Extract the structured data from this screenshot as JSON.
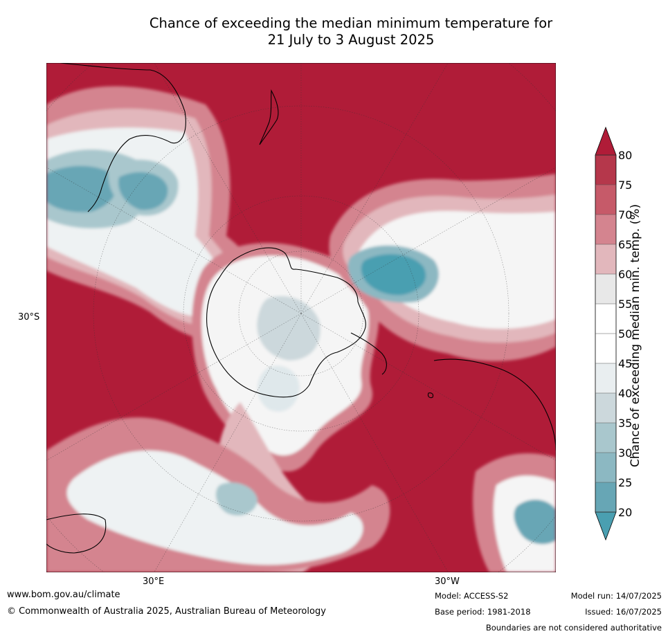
{
  "title_line1": "Chance of exceeding the median minimum temperature for",
  "title_line2": "21 July to 3 August 2025",
  "map": {
    "projection": "south-polar stereographic",
    "background_color": "#b01c38",
    "tick_labels": {
      "lat_left": "30°S",
      "lon_bottom_left": "30°E",
      "lon_bottom_right": "30°W"
    }
  },
  "colorbar": {
    "label": "Chance of exceeding median min. temp. (%)",
    "ticks": [
      "80",
      "75",
      "70",
      "65",
      "60",
      "55",
      "50",
      "45",
      "40",
      "35",
      "30",
      "25",
      "20"
    ],
    "bands": [
      {
        "range": "75-80",
        "color": "#b5374b"
      },
      {
        "range": "70-75",
        "color": "#c65a69"
      },
      {
        "range": "65-70",
        "color": "#d4848f"
      },
      {
        "range": "60-65",
        "color": "#e2b7bc"
      },
      {
        "range": "55-60",
        "color": "#e8e8e8"
      },
      {
        "range": "50-55",
        "color": "#ffffff"
      },
      {
        "range": "45-50",
        "color": "#ffffff"
      },
      {
        "range": "40-45",
        "color": "#e9eef0"
      },
      {
        "range": "35-40",
        "color": "#ccd8dc"
      },
      {
        "range": "30-35",
        "color": "#a9c7cd"
      },
      {
        "range": "25-30",
        "color": "#8cb8c2"
      },
      {
        "range": "20-25",
        "color": "#67a6b5"
      }
    ],
    "over_color": "#b01c38",
    "under_color": "#4a9fb1"
  },
  "footer": {
    "website": "www.bom.gov.au/climate",
    "copyright": "© Commonwealth of Australia 2025, Australian Bureau of Meteorology",
    "model": "Model: ACCESS-S2",
    "base_period": "Base period: 1981-2018",
    "model_run": "Model run: 14/07/2025",
    "issued": "Issued: 16/07/2025",
    "boundaries": "Boundaries are not considered authoritative"
  }
}
